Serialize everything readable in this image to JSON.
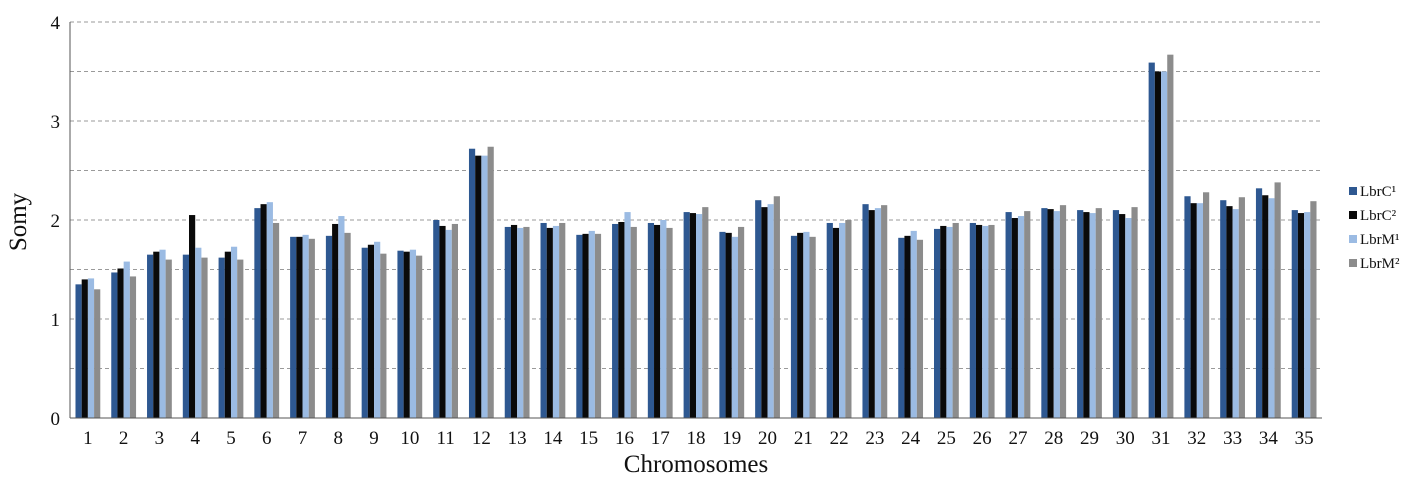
{
  "chart_data": {
    "type": "bar",
    "title": "",
    "xlabel": "Chromosomes",
    "ylabel": "Somy",
    "ylim": [
      0,
      4
    ],
    "yticks": [
      0,
      1,
      2,
      3,
      4
    ],
    "grid": "horizontal dashed at 0.5 steps",
    "legend_position": "right",
    "categories": [
      "1",
      "2",
      "3",
      "4",
      "5",
      "6",
      "7",
      "8",
      "9",
      "10",
      "11",
      "12",
      "13",
      "14",
      "15",
      "16",
      "17",
      "18",
      "19",
      "20",
      "21",
      "22",
      "23",
      "24",
      "25",
      "26",
      "27",
      "28",
      "29",
      "30",
      "31",
      "32",
      "33",
      "34",
      "35"
    ],
    "series": [
      {
        "name": "LbrC¹",
        "color": "#2e5891",
        "values": [
          1.35,
          1.47,
          1.65,
          1.65,
          1.62,
          2.12,
          1.83,
          1.84,
          1.72,
          1.69,
          2.0,
          2.72,
          1.93,
          1.97,
          1.85,
          1.96,
          1.97,
          2.08,
          1.88,
          2.2,
          1.84,
          1.97,
          2.16,
          1.82,
          1.91,
          1.97,
          2.08,
          2.12,
          2.1,
          2.1,
          3.59,
          2.24,
          2.2,
          2.32,
          2.1
        ]
      },
      {
        "name": "LbrC²",
        "color": "#0a0a0a",
        "values": [
          1.4,
          1.51,
          1.68,
          2.05,
          1.68,
          2.16,
          1.83,
          1.96,
          1.75,
          1.68,
          1.94,
          2.65,
          1.95,
          1.92,
          1.86,
          1.98,
          1.95,
          2.07,
          1.87,
          2.13,
          1.87,
          1.92,
          2.1,
          1.84,
          1.94,
          1.95,
          2.02,
          2.11,
          2.08,
          2.06,
          3.5,
          2.17,
          2.14,
          2.25,
          2.07
        ]
      },
      {
        "name": "LbrM¹",
        "color": "#9bbbe3",
        "values": [
          1.41,
          1.58,
          1.7,
          1.72,
          1.73,
          2.18,
          1.85,
          2.04,
          1.78,
          1.7,
          1.9,
          2.65,
          1.92,
          1.94,
          1.89,
          2.08,
          2.0,
          2.06,
          1.83,
          2.16,
          1.88,
          1.97,
          2.12,
          1.89,
          1.93,
          1.94,
          2.04,
          2.09,
          2.07,
          2.02,
          3.5,
          2.17,
          2.11,
          2.22,
          2.08
        ]
      },
      {
        "name": "LbrM²",
        "color": "#8c8c8c",
        "values": [
          1.3,
          1.43,
          1.6,
          1.62,
          1.6,
          1.97,
          1.81,
          1.87,
          1.66,
          1.64,
          1.96,
          2.74,
          1.93,
          1.97,
          1.86,
          1.93,
          1.92,
          2.13,
          1.93,
          2.24,
          1.83,
          2.0,
          2.15,
          1.8,
          1.97,
          1.95,
          2.09,
          2.15,
          2.12,
          2.13,
          3.67,
          2.28,
          2.23,
          2.38,
          2.19
        ]
      }
    ]
  }
}
